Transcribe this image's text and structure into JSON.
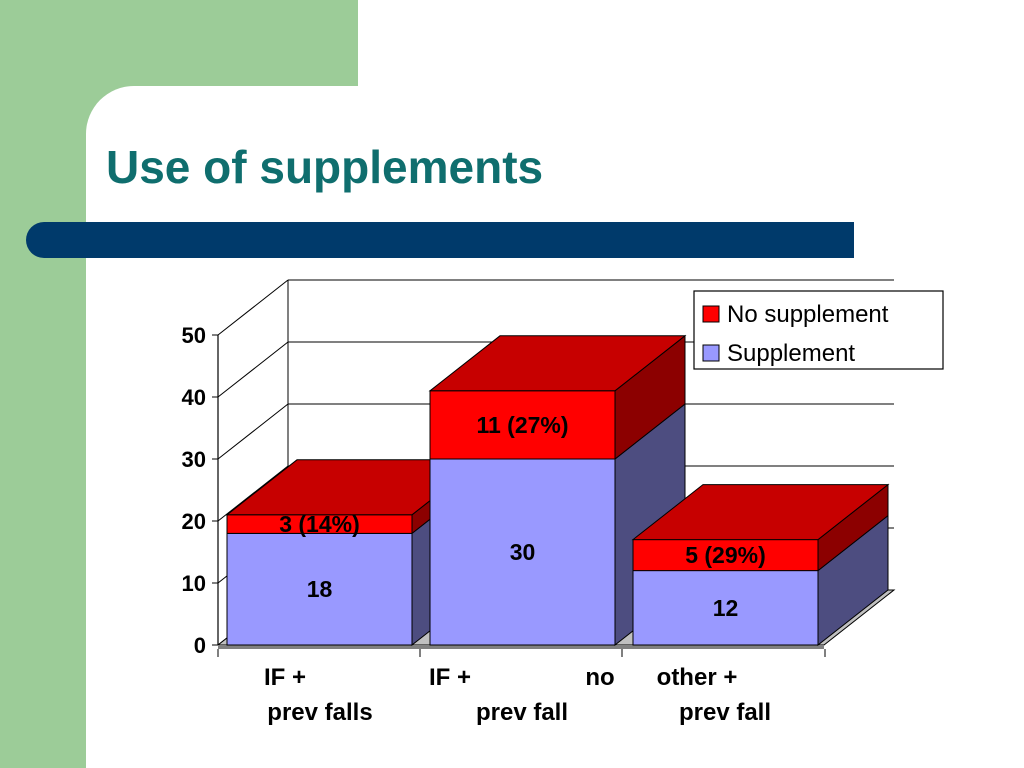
{
  "slide": {
    "title": "Use of supplements",
    "colors": {
      "background_left": "#9ccc98",
      "title": "#0f6e6e",
      "title_bar": "#003a6b"
    }
  },
  "chart_data": {
    "type": "bar",
    "stacked": true,
    "three_d": true,
    "title": "",
    "xlabel": "",
    "ylabel": "",
    "ylim": [
      0,
      50
    ],
    "yticks": [
      0,
      10,
      20,
      30,
      40,
      50
    ],
    "grid": true,
    "legend": {
      "position": "top-right"
    },
    "categories": [
      {
        "lines": [
          "IF +",
          "prev falls"
        ]
      },
      {
        "lines": [
          "IF +",
          "no",
          "prev fall"
        ]
      },
      {
        "lines": [
          "other +",
          "prev fall"
        ]
      }
    ],
    "series": [
      {
        "name": "Supplement",
        "color": "#9999ff",
        "values": [
          18,
          30,
          12
        ],
        "labels": [
          "18",
          "30",
          "12"
        ]
      },
      {
        "name": "No supplement",
        "color": "#ff0000",
        "values": [
          3,
          11,
          5
        ],
        "labels": [
          "3 (14%)",
          "11 (27%)",
          "5 (29%)"
        ]
      }
    ]
  }
}
